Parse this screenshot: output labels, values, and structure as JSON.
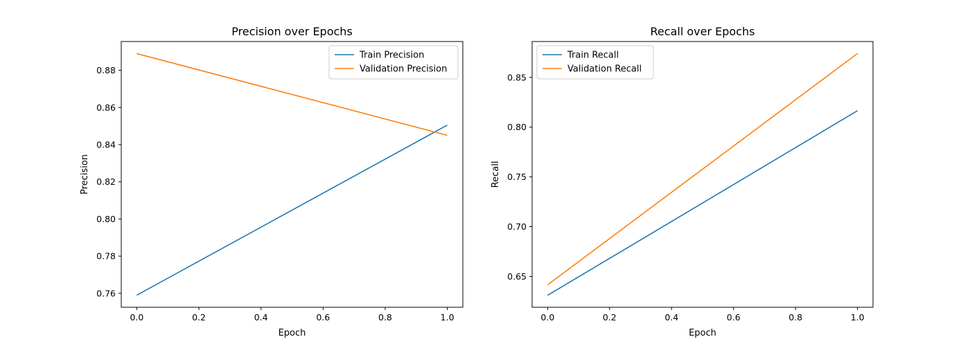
{
  "chart_data": [
    {
      "type": "line",
      "title": "Precision over Epochs",
      "xlabel": "Epoch",
      "ylabel": "Precision",
      "xlim": [
        -0.05,
        1.05
      ],
      "ylim": [
        0.7525,
        0.8955
      ],
      "xticks": [
        0.0,
        0.2,
        0.4,
        0.6,
        0.8,
        1.0
      ],
      "xtick_labels": [
        "0.0",
        "0.2",
        "0.4",
        "0.6",
        "0.8",
        "1.0"
      ],
      "yticks": [
        0.76,
        0.78,
        0.8,
        0.82,
        0.84,
        0.86,
        0.88
      ],
      "ytick_labels": [
        "0.76",
        "0.78",
        "0.80",
        "0.82",
        "0.84",
        "0.86",
        "0.88"
      ],
      "grid": false,
      "legend_position": "top-right",
      "series": [
        {
          "name": "Train Precision",
          "color": "#1f77b4",
          "x": [
            0,
            1
          ],
          "y": [
            0.759,
            0.8505
          ]
        },
        {
          "name": "Validation Precision",
          "color": "#ff7f0e",
          "x": [
            0,
            1
          ],
          "y": [
            0.889,
            0.845
          ]
        }
      ]
    },
    {
      "type": "line",
      "title": "Recall over Epochs",
      "xlabel": "Epoch",
      "ylabel": "Recall",
      "xlim": [
        -0.05,
        1.05
      ],
      "ylim": [
        0.619,
        0.886
      ],
      "xticks": [
        0.0,
        0.2,
        0.4,
        0.6,
        0.8,
        1.0
      ],
      "xtick_labels": [
        "0.0",
        "0.2",
        "0.4",
        "0.6",
        "0.8",
        "1.0"
      ],
      "yticks": [
        0.65,
        0.7,
        0.75,
        0.8,
        0.85
      ],
      "ytick_labels": [
        "0.65",
        "0.70",
        "0.75",
        "0.80",
        "0.85"
      ],
      "grid": false,
      "legend_position": "top-left",
      "series": [
        {
          "name": "Train Recall",
          "color": "#1f77b4",
          "x": [
            0,
            1
          ],
          "y": [
            0.631,
            0.8165
          ]
        },
        {
          "name": "Validation Recall",
          "color": "#ff7f0e",
          "x": [
            0,
            1
          ],
          "y": [
            0.6415,
            0.874
          ]
        }
      ]
    }
  ]
}
